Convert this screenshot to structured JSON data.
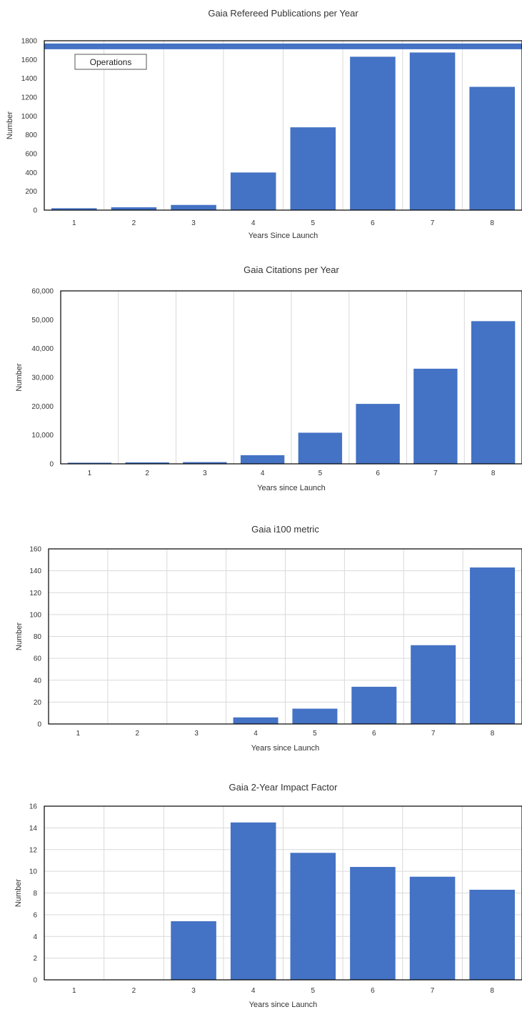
{
  "chart_data": [
    {
      "type": "bar",
      "title": "Gaia Refereed Publications per Year",
      "xlabel": "Years Since Launch",
      "ylabel": "Number",
      "categories": [
        "1",
        "2",
        "3",
        "4",
        "5",
        "6",
        "7",
        "8"
      ],
      "values": [
        20,
        30,
        55,
        400,
        880,
        1630,
        1675,
        1310
      ],
      "ylim": [
        0,
        1800
      ],
      "yticks": [
        "0",
        "200",
        "400",
        "600",
        "800",
        "1000",
        "1200",
        "1400",
        "1600",
        "1800"
      ],
      "grid": "vertical",
      "annotation": {
        "text": "Operations",
        "baseline_value": 1740
      },
      "colors": {
        "bar": "#4472C4",
        "grid": "#d9d9d9"
      }
    },
    {
      "type": "bar",
      "title": "Gaia Citations per Year",
      "xlabel": "Years since Launch",
      "ylabel": "Number",
      "categories": [
        "1",
        "2",
        "3",
        "4",
        "5",
        "6",
        "7",
        "8"
      ],
      "values": [
        400,
        500,
        600,
        3000,
        10800,
        20800,
        33000,
        49500
      ],
      "ylim": [
        0,
        60000
      ],
      "yticks": [
        "0",
        "10,000",
        "20,000",
        "30,000",
        "40,000",
        "50,000",
        "60,000"
      ],
      "grid": "vertical",
      "colors": {
        "bar": "#4472C4",
        "grid": "#d9d9d9"
      }
    },
    {
      "type": "bar",
      "title": "Gaia i100 metric",
      "xlabel": "Years since Launch",
      "ylabel": "Number",
      "categories": [
        "1",
        "2",
        "3",
        "4",
        "5",
        "6",
        "7",
        "8"
      ],
      "values": [
        0,
        0,
        0,
        6,
        14,
        34,
        72,
        143
      ],
      "ylim": [
        0,
        160
      ],
      "yticks": [
        "0",
        "20",
        "40",
        "60",
        "80",
        "100",
        "120",
        "140",
        "160"
      ],
      "grid": "both",
      "colors": {
        "bar": "#4472C4",
        "grid": "#d9d9d9"
      }
    },
    {
      "type": "bar",
      "title": "Gaia 2-Year Impact Factor",
      "xlabel": "Years since Launch",
      "ylabel": "Number",
      "categories": [
        "1",
        "2",
        "3",
        "4",
        "5",
        "6",
        "7",
        "8"
      ],
      "values": [
        0,
        0,
        5.4,
        14.5,
        11.7,
        10.4,
        9.5,
        8.3
      ],
      "ylim": [
        0,
        16
      ],
      "yticks": [
        "0",
        "2",
        "4",
        "6",
        "8",
        "10",
        "12",
        "14",
        "16"
      ],
      "grid": "both",
      "colors": {
        "bar": "#4472C4",
        "grid": "#d9d9d9"
      }
    }
  ]
}
